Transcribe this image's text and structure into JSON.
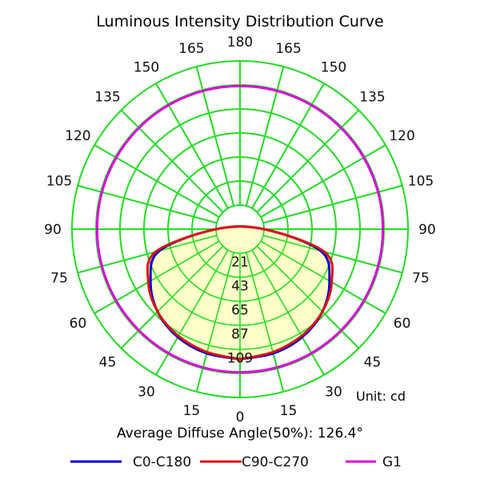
{
  "chart_data": {
    "type": "polar",
    "title": "Luminous Intensity Distribution Curve",
    "unit_label": "Unit: cd",
    "footer": "Average Diffuse Angle(50%): 126.4°",
    "angle_ticks": {
      "left": [
        "0",
        "15",
        "30",
        "45",
        "60",
        "75",
        "90",
        "105",
        "120",
        "135",
        "150",
        "165",
        "180"
      ],
      "right": [
        "15",
        "30",
        "45",
        "60",
        "75",
        "90",
        "105",
        "120",
        "135",
        "150",
        "165"
      ]
    },
    "radial_ticks": [
      "21",
      "43",
      "65",
      "87",
      "109"
    ],
    "radial_max": 109,
    "series": [
      {
        "name": "C0-C180",
        "color": "#0000cc",
        "angles": [
          0,
          15,
          30,
          45,
          60,
          75,
          90
        ],
        "values": [
          80,
          79,
          76,
          70,
          60,
          45,
          0
        ]
      },
      {
        "name": "C90-C270",
        "color": "#dd1111",
        "angles": [
          0,
          15,
          30,
          45,
          60,
          75,
          90
        ],
        "values": [
          80,
          78,
          75,
          70,
          62,
          48,
          0
        ]
      },
      {
        "name": "G1",
        "color": "#dd00dd",
        "angles": [
          0,
          30,
          60,
          90,
          120,
          150,
          180
        ],
        "values": [
          90,
          90,
          90,
          90,
          90,
          90,
          90
        ]
      }
    ],
    "grid_color": "#22dd22",
    "fill_color": "#ffffc0"
  }
}
